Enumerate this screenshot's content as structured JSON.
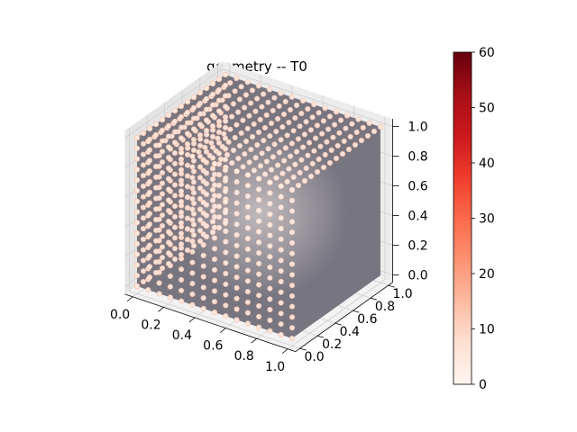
{
  "chart_data": {
    "type": "scatter",
    "projection": "3d",
    "title": "geometry -- T0",
    "xlabel": "",
    "ylabel": "",
    "zlabel": "",
    "xlim": [
      0,
      1
    ],
    "ylim": [
      0,
      1
    ],
    "zlim": [
      0,
      1
    ],
    "grid": true,
    "x_ticks": [
      "0.0",
      "0.2",
      "0.4",
      "0.6",
      "0.8",
      "1.0"
    ],
    "y_ticks": [
      "0.0",
      "0.2",
      "0.4",
      "0.6",
      "0.8",
      "1.0"
    ],
    "z_ticks": [
      "0.0",
      "0.2",
      "0.4",
      "0.6",
      "0.8",
      "1.0"
    ],
    "point_grid": {
      "x": [
        0,
        1
      ],
      "y": [
        0,
        1
      ],
      "z": [
        0,
        1
      ],
      "points_per_axis": 15
    },
    "color_value": 4,
    "colormap": "Reds",
    "colorbar": {
      "min": 0,
      "max": 60,
      "ticks": [
        "0",
        "10",
        "20",
        "30",
        "40",
        "50",
        "60"
      ]
    },
    "colors": {
      "cube_face": "#777580",
      "pane_left": "#ececec",
      "pane_right": "#e4e4e4",
      "pane_floor": "#f2f2f2",
      "grid_line": "#cfcfcf"
    }
  }
}
